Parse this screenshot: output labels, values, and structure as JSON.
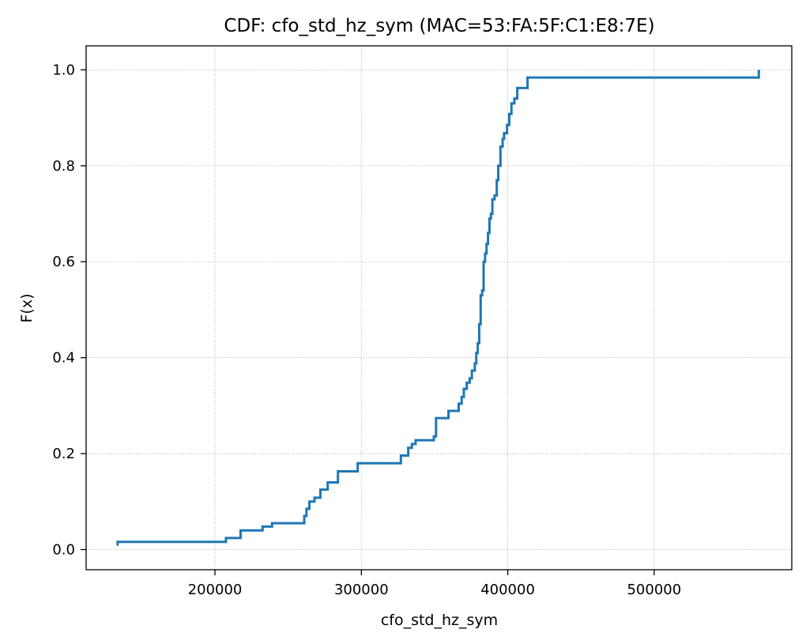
{
  "chart_data": {
    "type": "line",
    "step": true,
    "title": "CDF: cfo_std_hz_sym (MAC=53:FA:5F:C1:E8:7E)",
    "xlabel": "cfo_std_hz_sym",
    "ylabel": "F(x)",
    "xlim": [
      112000,
      594000
    ],
    "ylim": [
      -0.042,
      1.05
    ],
    "xticks": [
      200000,
      300000,
      400000,
      500000
    ],
    "xtick_labels": [
      "200000",
      "300000",
      "400000",
      "500000"
    ],
    "yticks": [
      0.0,
      0.2,
      0.4,
      0.6,
      0.8,
      1.0
    ],
    "ytick_labels": [
      "0.0",
      "0.2",
      "0.4",
      "0.6",
      "0.8",
      "1.0"
    ],
    "grid": true,
    "color": "#1f77b4",
    "series": [
      {
        "x": [
          133500,
          133500,
          207500,
          217500,
          232500,
          239000,
          261000,
          262500,
          264500,
          268000,
          272000,
          277000,
          284000,
          297500,
          327000,
          332000,
          334500,
          337000,
          349500,
          351000,
          359500,
          366500,
          368500,
          370000,
          372000,
          374000,
          375500,
          377500,
          378500,
          379500,
          380500,
          381500,
          382500,
          383500,
          384500,
          385500,
          386500,
          387500,
          388500,
          389500,
          391000,
          392500,
          393500,
          395000,
          396500,
          397500,
          399500,
          401000,
          402500,
          404500,
          406500,
          413500,
          571500,
          571500
        ],
        "y": [
          0.008,
          0.016,
          0.024,
          0.04,
          0.048,
          0.055,
          0.07,
          0.085,
          0.1,
          0.108,
          0.125,
          0.14,
          0.163,
          0.18,
          0.196,
          0.212,
          0.22,
          0.228,
          0.236,
          0.274,
          0.289,
          0.304,
          0.318,
          0.335,
          0.348,
          0.357,
          0.373,
          0.388,
          0.41,
          0.43,
          0.47,
          0.53,
          0.54,
          0.6,
          0.617,
          0.637,
          0.66,
          0.69,
          0.7,
          0.73,
          0.738,
          0.77,
          0.8,
          0.84,
          0.856,
          0.868,
          0.885,
          0.908,
          0.93,
          0.94,
          0.962,
          0.984,
          0.984,
          1.0
        ]
      }
    ]
  }
}
